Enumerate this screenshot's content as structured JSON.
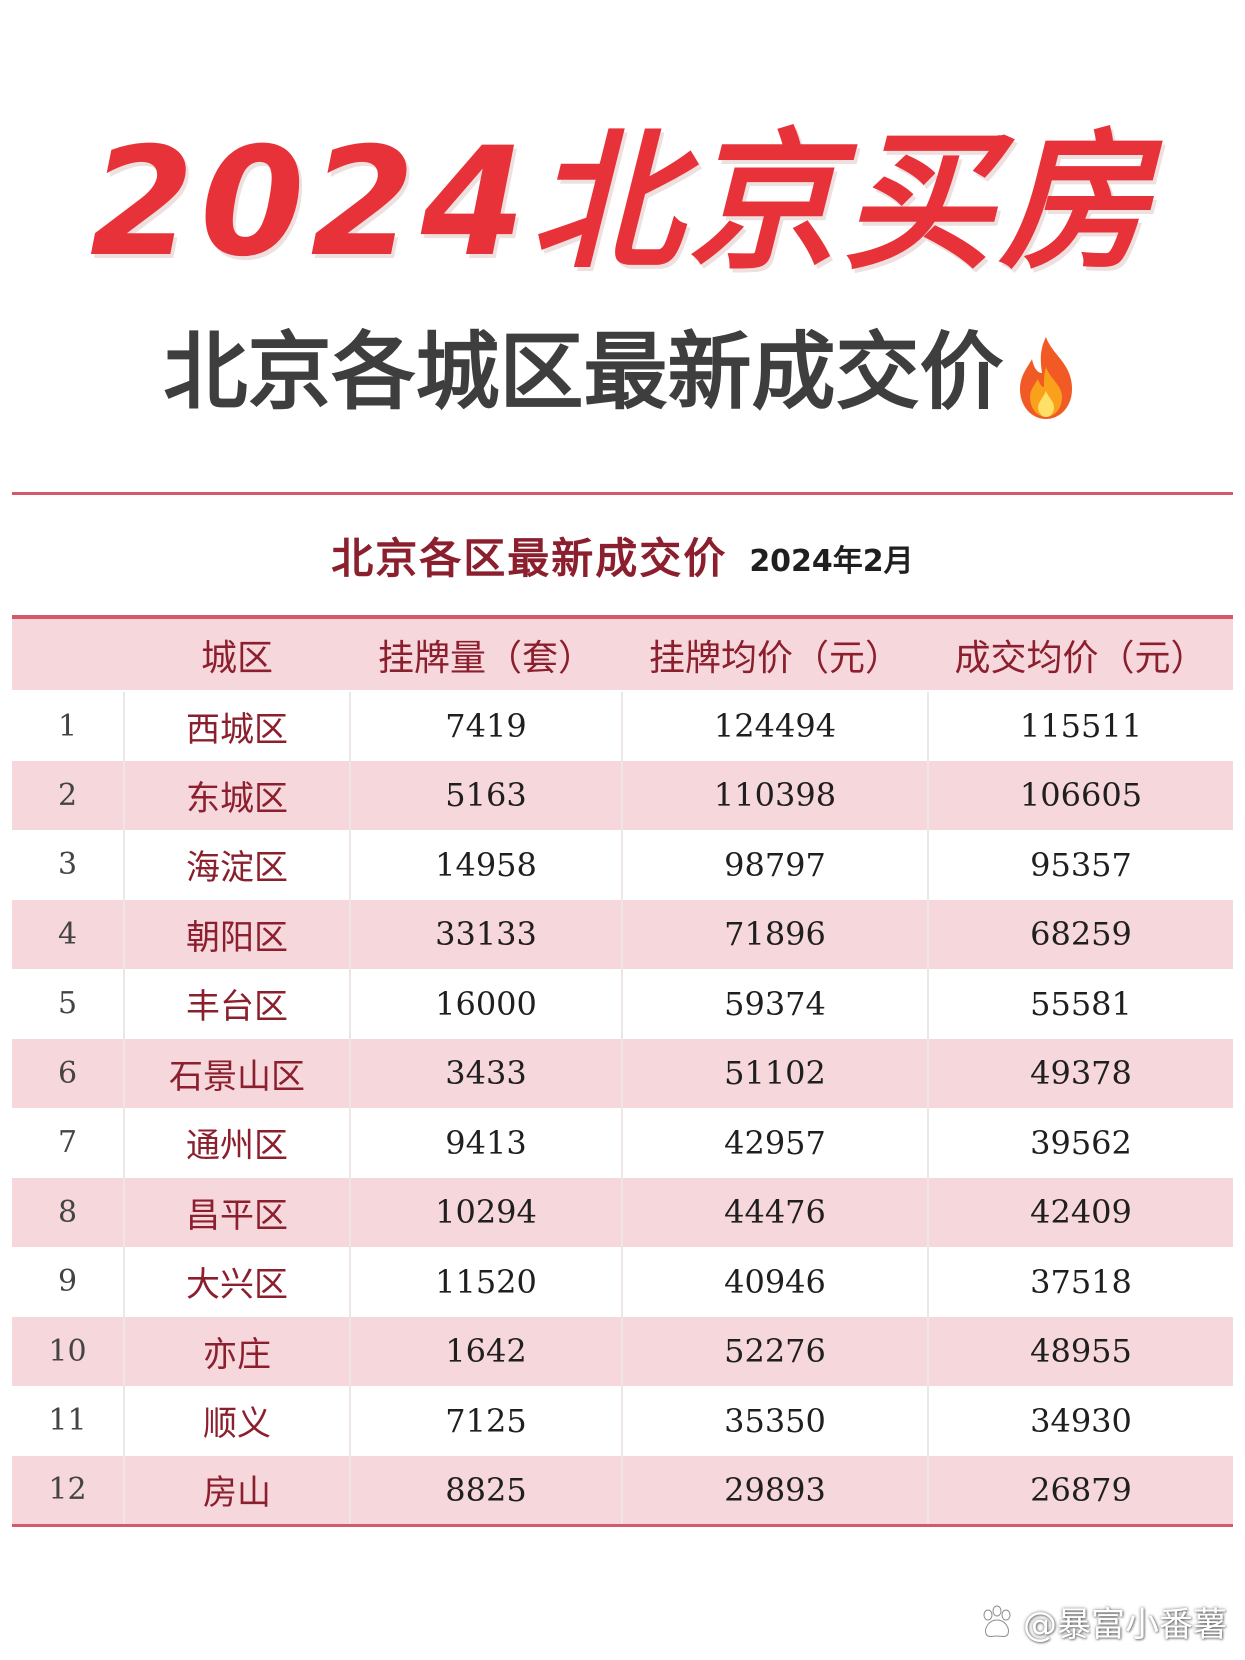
{
  "header": {
    "title": "2024北京买房",
    "subtitle": "北京各城区最新成交价",
    "fire_icon": "fire-icon"
  },
  "table": {
    "title": "北京各区最新成交价",
    "date": "2024年2月",
    "columns": [
      "",
      "城区",
      "挂牌量（套）",
      "挂牌均价（元）",
      "成交均价（元）"
    ],
    "rows": [
      {
        "rank": "1",
        "district": "西城区",
        "listings": "7419",
        "list_price": "124494",
        "deal_price": "115511"
      },
      {
        "rank": "2",
        "district": "东城区",
        "listings": "5163",
        "list_price": "110398",
        "deal_price": "106605"
      },
      {
        "rank": "3",
        "district": "海淀区",
        "listings": "14958",
        "list_price": "98797",
        "deal_price": "95357"
      },
      {
        "rank": "4",
        "district": "朝阳区",
        "listings": "33133",
        "list_price": "71896",
        "deal_price": "68259"
      },
      {
        "rank": "5",
        "district": "丰台区",
        "listings": "16000",
        "list_price": "59374",
        "deal_price": "55581"
      },
      {
        "rank": "6",
        "district": "石景山区",
        "listings": "3433",
        "list_price": "51102",
        "deal_price": "49378"
      },
      {
        "rank": "7",
        "district": "通州区",
        "listings": "9413",
        "list_price": "42957",
        "deal_price": "39562"
      },
      {
        "rank": "8",
        "district": "昌平区",
        "listings": "10294",
        "list_price": "44476",
        "deal_price": "42409"
      },
      {
        "rank": "9",
        "district": "大兴区",
        "listings": "11520",
        "list_price": "40946",
        "deal_price": "37518"
      },
      {
        "rank": "10",
        "district": "亦庄",
        "listings": "1642",
        "list_price": "52276",
        "deal_price": "48955"
      },
      {
        "rank": "11",
        "district": "顺义",
        "listings": "7125",
        "list_price": "35350",
        "deal_price": "34930"
      },
      {
        "rank": "12",
        "district": "房山",
        "listings": "8825",
        "list_price": "29893",
        "deal_price": "26879"
      }
    ]
  },
  "watermark": {
    "text": "@暴富小番薯",
    "icon": "paw-icon"
  },
  "colors": {
    "title_red": "#e8323a",
    "subtitle_gray": "#3e3e3e",
    "table_accent": "#d4596a",
    "row_pink": "#f6d7dc",
    "header_text": "#8c1f2e"
  }
}
